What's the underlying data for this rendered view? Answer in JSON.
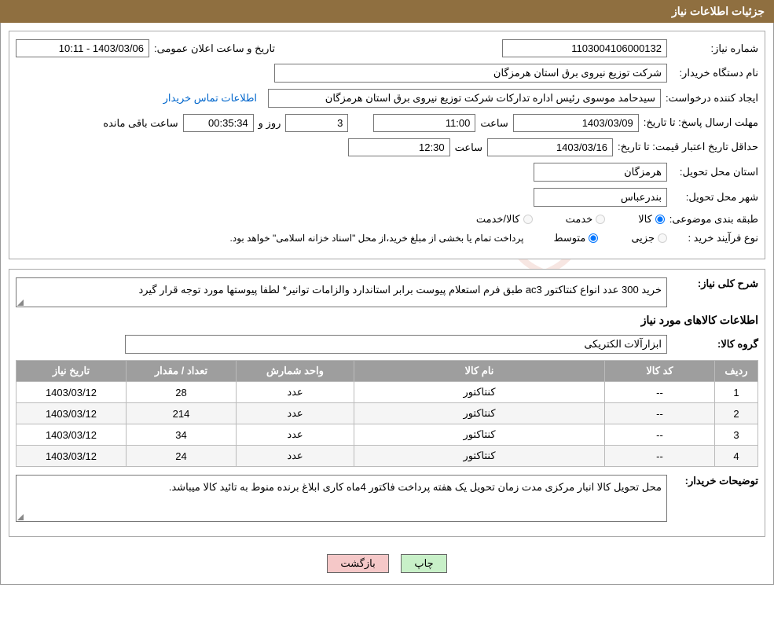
{
  "header": {
    "title": "جزئیات اطلاعات نیاز"
  },
  "info": {
    "need_no_label": "شماره نیاز:",
    "need_no": "1103004106000132",
    "announce_label": "تاریخ و ساعت اعلان عمومی:",
    "announce_value": "1403/03/06 - 10:11",
    "buyer_dev_label": "نام دستگاه خریدار:",
    "buyer_dev": "شرکت توزیع نیروی برق استان هرمزگان",
    "requester_label": "ایجاد کننده درخواست:",
    "requester": "سیدحامد موسوی رئیس اداره تدارکات شرکت توزیع نیروی برق استان هرمزگان",
    "contact_link": "اطلاعات تماس خریدار",
    "deadline_label_a": "مهلت ارسال پاسخ:",
    "to_date_label": "تا تاریخ:",
    "deadline_date": "1403/03/09",
    "time_label": "ساعت",
    "deadline_time": "11:00",
    "days_label": "روز و",
    "days_value": "3",
    "hours_value": "00:35:34",
    "remain_label": "ساعت باقی مانده",
    "price_valid_label": "حداقل تاریخ اعتبار قیمت:",
    "price_valid_date": "1403/03/16",
    "price_valid_time": "12:30",
    "delivery_province_label": "استان محل تحویل:",
    "delivery_province": "هرمزگان",
    "delivery_city_label": "شهر محل تحویل:",
    "delivery_city": "بندرعباس",
    "subject_class_label": "طبقه بندی موضوعی:",
    "subject_opt_goods": "کالا",
    "subject_opt_service": "خدمت",
    "subject_opt_goods_service": "کالا/خدمت",
    "purchase_type_label": "نوع فرآیند خرید :",
    "purchase_opt_minor": "جزیی",
    "purchase_opt_medium": "متوسط",
    "purchase_note": "پرداخت تمام یا بخشی از مبلغ خرید،از محل \"اسناد خزانه اسلامی\" خواهد بود."
  },
  "desc": {
    "general_label": "شرح کلی نیاز:",
    "general_text": "خرید 300 عدد انواع کنتاکتور ac3 طبق فرم استعلام پیوست برابر استاندارد والزامات توانیر* لطفا پیوستها مورد توجه قرار گیرد",
    "items_title": "اطلاعات کالاهای مورد نیاز",
    "group_label": "گروه کالا:",
    "group_value": "ابزارآلات الکتریکی",
    "table": {
      "headers": {
        "idx": "ردیف",
        "code": "کد کالا",
        "name": "نام کالا",
        "unit": "واحد شمارش",
        "qty": "تعداد / مقدار",
        "date": "تاریخ نیاز"
      },
      "rows": [
        {
          "idx": "1",
          "code": "--",
          "name": "کنتاکتور",
          "unit": "عدد",
          "qty": "28",
          "date": "1403/03/12"
        },
        {
          "idx": "2",
          "code": "--",
          "name": "کنتاکتور",
          "unit": "عدد",
          "qty": "214",
          "date": "1403/03/12"
        },
        {
          "idx": "3",
          "code": "--",
          "name": "کنتاکتور",
          "unit": "عدد",
          "qty": "34",
          "date": "1403/03/12"
        },
        {
          "idx": "4",
          "code": "--",
          "name": "کنتاکتور",
          "unit": "عدد",
          "qty": "24",
          "date": "1403/03/12"
        }
      ]
    },
    "buyer_notes_label": "توضیحات خریدار:",
    "buyer_notes": "محل تحویل کالا انبار مرکزی مدت زمان تحویل یک هفته پرداخت فاکتور 4ماه کاری ابلاغ برنده منوط به تائید کالا میباشد."
  },
  "buttons": {
    "print": "چاپ",
    "back": "بازگشت"
  },
  "widths": {
    "need_no": "210px",
    "announce": "170px",
    "buyer_dev": "500px",
    "requester": "500px",
    "date": "160px",
    "time": "130px",
    "days": "80px",
    "hours": "90px",
    "province": "170px",
    "group": "690px"
  }
}
